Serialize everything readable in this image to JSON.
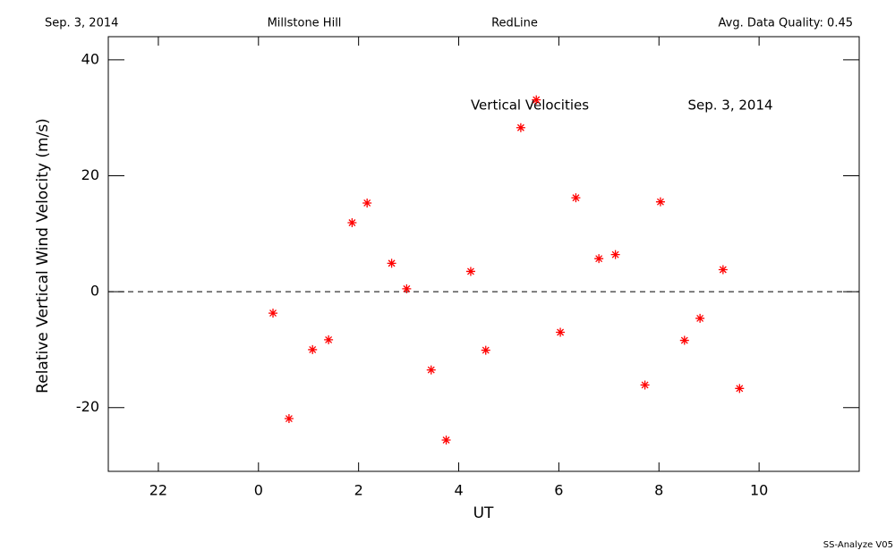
{
  "chart_data": {
    "type": "scatter",
    "header": [
      "Sep. 3, 2014",
      "Millstone Hill",
      "RedLine",
      "Avg. Data Quality: 0.45"
    ],
    "annotations": [
      "Vertical Velocities",
      "Sep. 3, 2014"
    ],
    "xlabel": "UT",
    "ylabel": "Relative Vertical Wind Velocity (m/s)",
    "footer": "SS-Analyze V05",
    "xlim": [
      -3,
      12
    ],
    "xticks": [
      {
        "value": -2,
        "label": "22"
      },
      0,
      2,
      4,
      6,
      8,
      10
    ],
    "ylim": [
      -31,
      44
    ],
    "yticks": [
      -20,
      0,
      20,
      40
    ],
    "hline": 0,
    "series": [
      {
        "name": "Vertical Velocities",
        "color": "#ff0000",
        "x": [
          0.29,
          0.61,
          1.08,
          1.4,
          1.87,
          2.17,
          2.66,
          2.96,
          3.45,
          3.75,
          4.24,
          4.54,
          5.24,
          5.55,
          6.03,
          6.34,
          6.8,
          7.13,
          7.72,
          8.03,
          8.51,
          8.82,
          9.28,
          9.61
        ],
        "values": [
          -3.7,
          -21.9,
          -10.0,
          -8.3,
          11.9,
          15.3,
          4.9,
          0.5,
          -13.5,
          -25.6,
          3.5,
          -10.1,
          28.3,
          33.1,
          -7.0,
          16.2,
          5.7,
          6.4,
          -16.1,
          15.5,
          -8.4,
          -4.6,
          3.8,
          -16.7
        ]
      }
    ]
  }
}
